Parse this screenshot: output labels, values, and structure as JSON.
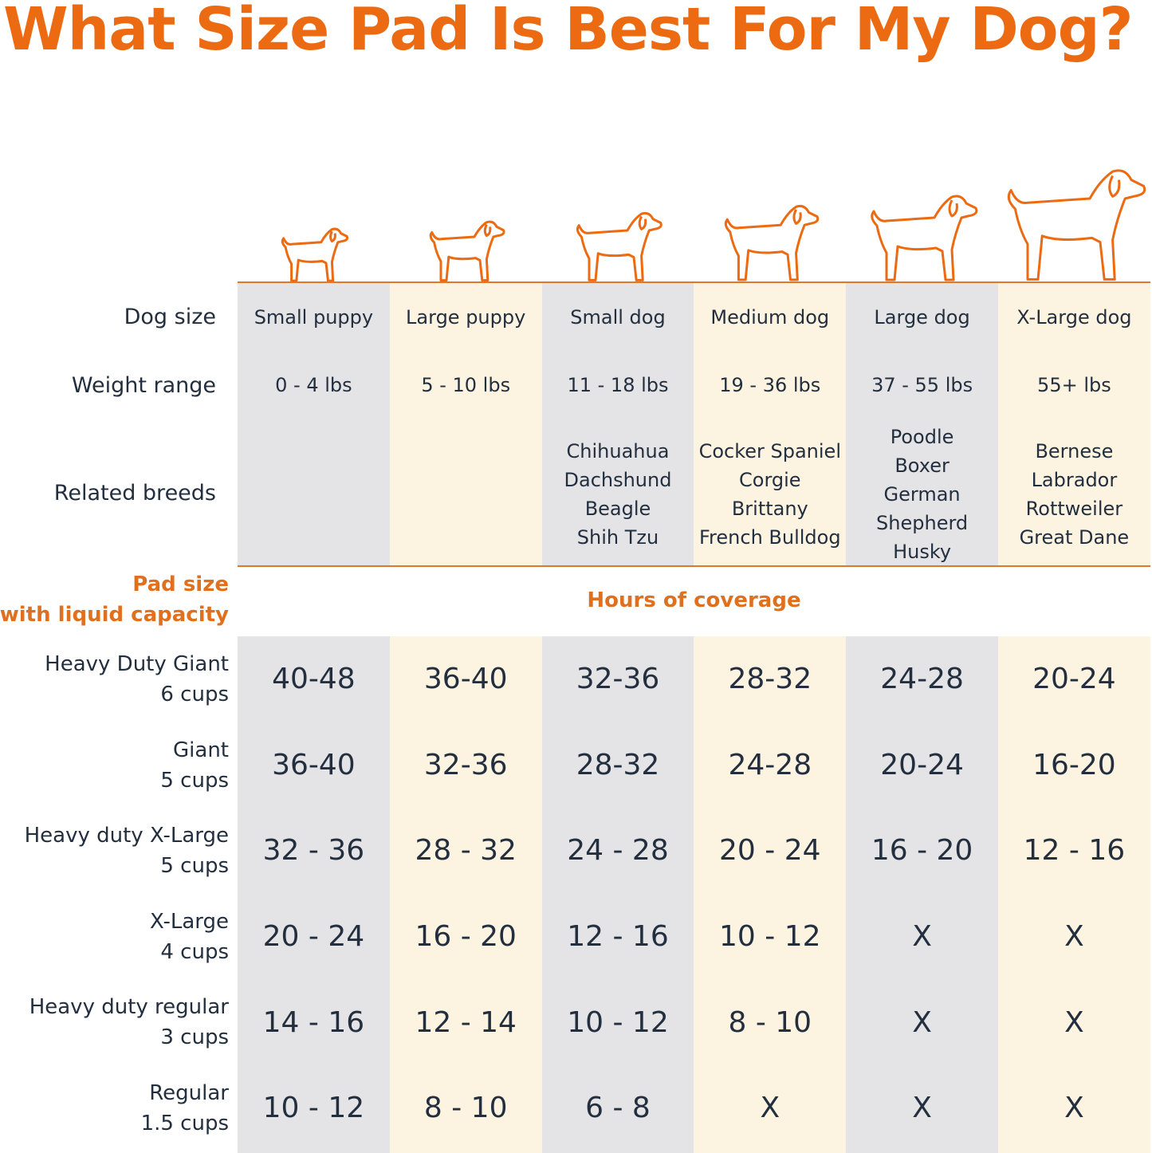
{
  "title": "What Size Pad Is Best For My Dog?",
  "colors": {
    "accent": "#ec6b12",
    "gray_column": "#e4e4e6",
    "cream_column": "#fdf3e1",
    "text": "#232f3e"
  },
  "row_labels": {
    "dog_size": "Dog size",
    "weight_range": "Weight range",
    "related_breeds": "Related breeds"
  },
  "pad_header": {
    "line1": "Pad size",
    "line2": "with liquid capacity"
  },
  "coverage_header": "Hours of coverage",
  "chart_data": {
    "type": "table",
    "columns": [
      {
        "dog_size": "Small puppy",
        "weight": "0 - 4 lbs",
        "breeds": [],
        "icon": "small-puppy-icon"
      },
      {
        "dog_size": "Large puppy",
        "weight": "5 - 10 lbs",
        "breeds": [],
        "icon": "large-puppy-icon"
      },
      {
        "dog_size": "Small dog",
        "weight": "11 - 18 lbs",
        "breeds": [
          "Chihuahua",
          "Dachshund",
          "Beagle",
          "Shih Tzu"
        ],
        "icon": "small-dog-icon"
      },
      {
        "dog_size": "Medium dog",
        "weight": "19 - 36 lbs",
        "breeds": [
          "Cocker Spaniel",
          "Corgie",
          "Brittany",
          "French Bulldog"
        ],
        "icon": "medium-dog-icon"
      },
      {
        "dog_size": "Large dog",
        "weight": "37 - 55 lbs",
        "breeds": [
          "Poodle",
          "Boxer",
          "German",
          "Shepherd",
          "Husky"
        ],
        "icon": "large-dog-icon"
      },
      {
        "dog_size": "X-Large dog",
        "weight": "55+ lbs",
        "breeds": [
          "Bernese",
          "Labrador",
          "Rottweiler",
          "Great Dane"
        ],
        "icon": "x-large-dog-icon"
      }
    ],
    "rows": [
      {
        "name": "Heavy Duty Giant",
        "capacity": "6 cups",
        "values": [
          "40-48",
          "36-40",
          "32-36",
          "28-32",
          "24-28",
          "20-24"
        ]
      },
      {
        "name": "Giant",
        "capacity": "5 cups",
        "values": [
          "36-40",
          "32-36",
          "28-32",
          "24-28",
          "20-24",
          "16-20"
        ]
      },
      {
        "name": "Heavy duty X-Large",
        "capacity": "5 cups",
        "values": [
          "32 - 36",
          "28 - 32",
          "24 - 28",
          "20 - 24",
          "16 - 20",
          "12 - 16"
        ]
      },
      {
        "name": "X-Large",
        "capacity": "4 cups",
        "values": [
          "20 - 24",
          "16 - 20",
          "12 - 16",
          "10 - 12",
          "X",
          "X"
        ]
      },
      {
        "name": "Heavy duty regular",
        "capacity": "3 cups",
        "values": [
          "14 - 16",
          "12 - 14",
          "10 - 12",
          "8 - 10",
          "X",
          "X"
        ]
      },
      {
        "name": "Regular",
        "capacity": "1.5 cups",
        "values": [
          "10 - 12",
          "8 - 10",
          "6 - 8",
          "X",
          "X",
          "X"
        ]
      }
    ]
  }
}
